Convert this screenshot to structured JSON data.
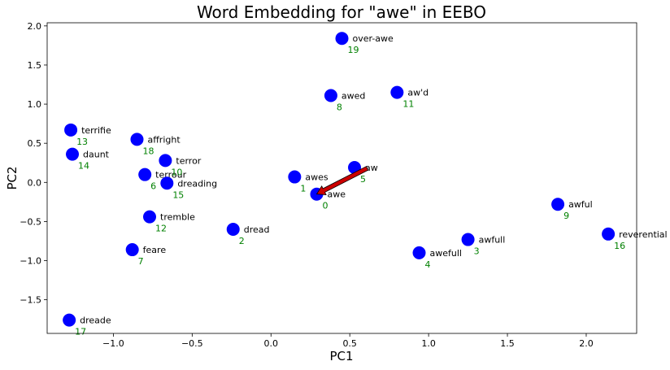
{
  "chart_data": {
    "type": "scatter",
    "title": "Word Embedding for \"awe\" in EEBO",
    "xlabel": "PC1",
    "ylabel": "PC2",
    "xlim": [
      -1.42,
      2.32
    ],
    "ylim": [
      -1.93,
      2.04
    ],
    "xticks": [
      -1.0,
      -0.5,
      0.0,
      0.5,
      1.0,
      1.5,
      2.0
    ],
    "xtick_labels": [
      "−1.0",
      "−0.5",
      "0.0",
      "0.5",
      "1.0",
      "1.5",
      "2.0"
    ],
    "yticks": [
      -1.5,
      -1.0,
      -0.5,
      0.0,
      0.5,
      1.0,
      1.5,
      2.0
    ],
    "ytick_labels": [
      "−1.5",
      "−1.0",
      "−0.5",
      "0.0",
      "0.5",
      "1.0",
      "1.5",
      "2.0"
    ],
    "grid": false,
    "point_color": "#0000ff",
    "label_color": "#000000",
    "index_color": "#008000",
    "target_label_color": "#ff0000",
    "arrow_color": "#cc0000",
    "points": [
      {
        "word": "awe",
        "index": "0",
        "x": 0.29,
        "y": -0.15,
        "target": true
      },
      {
        "word": "awes",
        "index": "1",
        "x": 0.15,
        "y": 0.07
      },
      {
        "word": "dread",
        "index": "2",
        "x": -0.24,
        "y": -0.6
      },
      {
        "word": "awfull",
        "index": "3",
        "x": 1.25,
        "y": -0.73
      },
      {
        "word": "awefull",
        "index": "4",
        "x": 0.94,
        "y": -0.9
      },
      {
        "word": "aw",
        "index": "5",
        "x": 0.53,
        "y": 0.19
      },
      {
        "word": "terrour",
        "index": "6",
        "x": -0.8,
        "y": 0.1
      },
      {
        "word": "feare",
        "index": "7",
        "x": -0.88,
        "y": -0.86
      },
      {
        "word": "awed",
        "index": "8",
        "x": 0.38,
        "y": 1.11
      },
      {
        "word": "awful",
        "index": "9",
        "x": 1.82,
        "y": -0.28
      },
      {
        "word": "terror",
        "index": "10",
        "x": -0.67,
        "y": 0.28
      },
      {
        "word": "aw'd",
        "index": "11",
        "x": 0.8,
        "y": 1.15
      },
      {
        "word": "tremble",
        "index": "12",
        "x": -0.77,
        "y": -0.44
      },
      {
        "word": "terrifie",
        "index": "13",
        "x": -1.27,
        "y": 0.67
      },
      {
        "word": "daunt",
        "index": "14",
        "x": -1.26,
        "y": 0.36
      },
      {
        "word": "dreading",
        "index": "15",
        "x": -0.66,
        "y": -0.01
      },
      {
        "word": "reverential",
        "index": "16",
        "x": 2.14,
        "y": -0.66
      },
      {
        "word": "dreade",
        "index": "17",
        "x": -1.28,
        "y": -1.76
      },
      {
        "word": "affright",
        "index": "18",
        "x": -0.85,
        "y": 0.55
      },
      {
        "word": "over-awe",
        "index": "19",
        "x": 0.45,
        "y": 1.84
      }
    ],
    "arrow": {
      "from": [
        0.61,
        0.18
      ],
      "to": [
        0.29,
        -0.15
      ]
    }
  }
}
